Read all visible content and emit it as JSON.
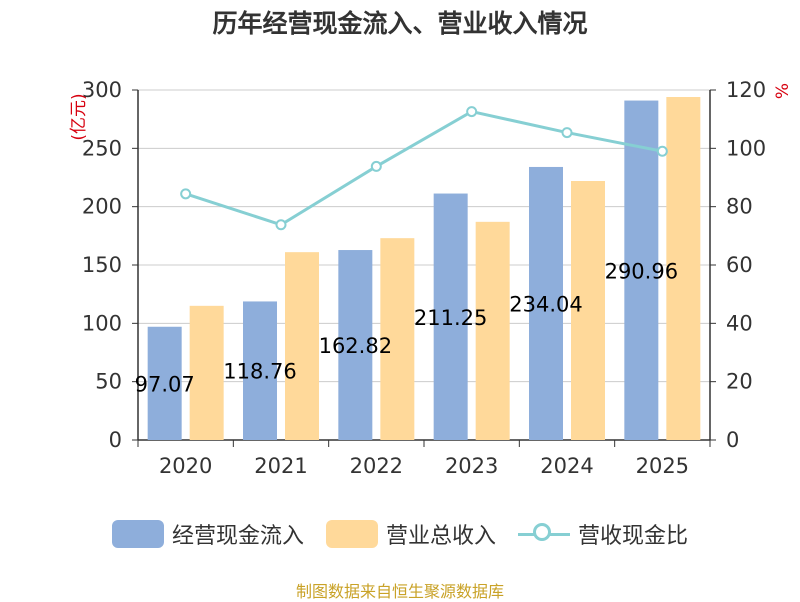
{
  "title": "历年经营现金流入、营业收入情况",
  "source_note": "制图数据来自恒生聚源数据库",
  "colors": {
    "cash_inflow": "#8eaedb",
    "revenue": "#ffd99a",
    "ratio_line": "#86cfd3",
    "unit_text": "#d7000f",
    "axis": "#333333",
    "grid": "#cccccc",
    "source": "#c9a227"
  },
  "chart_data": {
    "type": "bar",
    "title": "历年经营现金流入、营业收入情况",
    "categories": [
      "2020",
      "2021",
      "2022",
      "2023",
      "2024",
      "2025"
    ],
    "left_axis": {
      "unit_label": "(亿元)",
      "range": [
        0,
        300
      ],
      "ticks": [
        0,
        50,
        100,
        150,
        200,
        250,
        300
      ]
    },
    "right_axis": {
      "unit_label": "%",
      "range": [
        0,
        120
      ],
      "ticks": [
        0,
        20,
        40,
        60,
        80,
        100,
        120
      ]
    },
    "series": [
      {
        "name": "经营现金流入",
        "type": "bar",
        "axis": "left",
        "values": [
          97.07,
          118.76,
          162.82,
          211.25,
          234.04,
          290.96
        ],
        "labels": [
          "97.07",
          "118.76",
          "162.82",
          "211.25",
          "234.04",
          "290.96"
        ]
      },
      {
        "name": "营业总收入",
        "type": "bar",
        "axis": "left",
        "values": [
          115,
          161,
          173,
          187,
          222,
          294
        ]
      },
      {
        "name": "营收现金比",
        "type": "line",
        "axis": "right",
        "values": [
          84.4,
          73.8,
          93.8,
          112.6,
          105.4,
          99.0
        ]
      }
    ],
    "grid": true,
    "legend_position": "bottom"
  },
  "legend": [
    {
      "label": "经营现金流入",
      "kind": "bar",
      "color_key": "cash_inflow"
    },
    {
      "label": "营业总收入",
      "kind": "bar",
      "color_key": "revenue"
    },
    {
      "label": "营收现金比",
      "kind": "line",
      "color_key": "ratio_line"
    }
  ]
}
